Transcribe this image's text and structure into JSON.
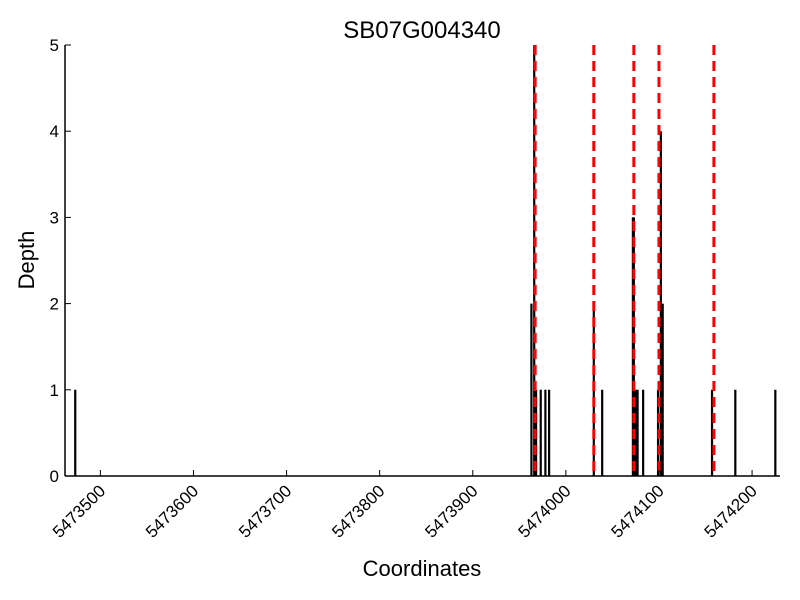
{
  "chart_data": {
    "type": "bar",
    "title": "SB07G004340",
    "xlabel": "Coordinates",
    "ylabel": "Depth",
    "xlim": [
      5473462,
      5474230
    ],
    "ylim": [
      0,
      5
    ],
    "xticks": [
      5473500,
      5473600,
      5473700,
      5473800,
      5473900,
      5474000,
      5474100,
      5474200
    ],
    "yticks": [
      0,
      1,
      2,
      3,
      4,
      5
    ],
    "grid": false,
    "bar_color": "#000000",
    "marker_color": "#ff0000",
    "series": [
      {
        "x": [
          5473473,
          5473963,
          5473966,
          5473968,
          5473973,
          5473978,
          5473982,
          5474030,
          5474039,
          5474072,
          5474073,
          5474075,
          5474077,
          5474083,
          5474099,
          5474102,
          5474104,
          5474157,
          5474182,
          5474225
        ],
        "y": [
          1,
          2,
          5,
          1,
          1,
          1,
          1,
          2,
          1,
          3,
          3,
          1,
          1,
          1,
          1,
          4,
          2,
          1,
          1,
          1
        ]
      }
    ],
    "vlines": [
      5473967,
      5474030,
      5474073,
      5474100,
      5474159
    ]
  }
}
